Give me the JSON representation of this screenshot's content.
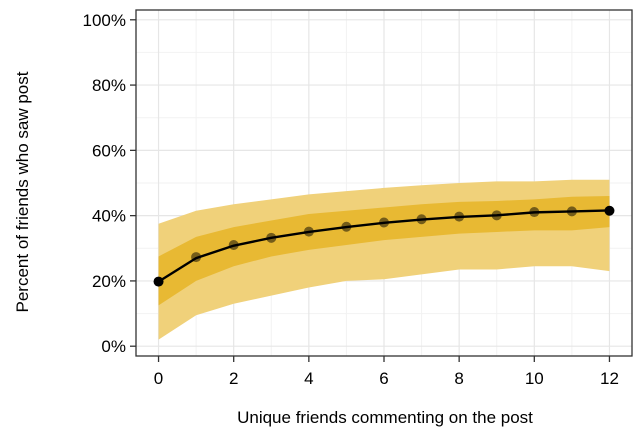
{
  "chart_data": {
    "type": "line",
    "title": "",
    "xlabel": "Unique friends commenting on the post",
    "ylabel": "Percent of friends who saw post",
    "x": [
      0,
      1,
      2,
      3,
      4,
      5,
      6,
      7,
      8,
      9,
      10,
      11,
      12
    ],
    "xlim": [
      -0.6,
      12.6
    ],
    "ylim": [
      -3,
      103
    ],
    "x_ticks": [
      0,
      2,
      4,
      6,
      8,
      10,
      12
    ],
    "x_tick_labels": [
      "0",
      "2",
      "4",
      "6",
      "8",
      "10",
      "12"
    ],
    "y_ticks": [
      0,
      20,
      40,
      60,
      80,
      100
    ],
    "y_tick_labels": [
      "0%",
      "20%",
      "40%",
      "60%",
      "80%",
      "100%"
    ],
    "grid": true,
    "series": [
      {
        "kind": "line",
        "color": "#000000",
        "values": [
          19.8,
          27,
          30.8,
          33.2,
          35,
          36.5,
          37.8,
          38.8,
          39.6,
          40.1,
          41,
          41.3,
          41.6
        ]
      },
      {
        "kind": "points",
        "color": "#000000",
        "values": [
          19.8,
          27.3,
          31,
          33.2,
          35.1,
          36.6,
          37.9,
          38.9,
          39.7,
          40.1,
          41.1,
          41.3,
          41.5
        ]
      },
      {
        "kind": "outer-band",
        "color": "#f0d17a",
        "lower": [
          2,
          9.5,
          13,
          15.5,
          18,
          20,
          20.5,
          22,
          23.5,
          23.5,
          24.5,
          24.5,
          23
        ],
        "upper": [
          37.5,
          41.5,
          43.5,
          45,
          46.5,
          47.5,
          48.5,
          49.3,
          50,
          50.5,
          50.5,
          51,
          51
        ]
      },
      {
        "kind": "inner-band",
        "color": "#e8b933",
        "lower": [
          12.5,
          20,
          24.5,
          27.5,
          29.5,
          31,
          32.5,
          33.5,
          34.5,
          35,
          35.5,
          35.5,
          36.5
        ],
        "upper": [
          27.5,
          33.5,
          36.5,
          38.5,
          40.5,
          41.5,
          42.5,
          43.5,
          44.2,
          44.5,
          45,
          45.8,
          46
        ]
      }
    ]
  }
}
